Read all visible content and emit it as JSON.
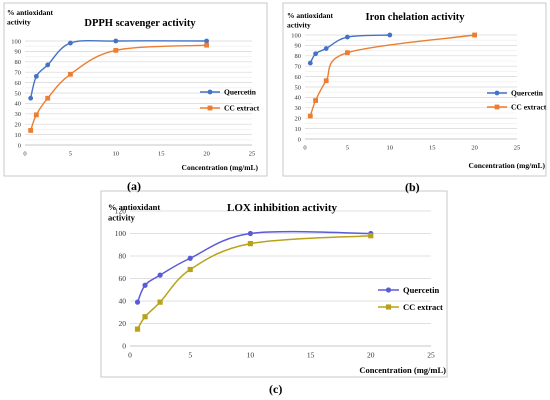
{
  "chart_data": [
    {
      "id": "a",
      "type": "line",
      "title": "DPPH scavenger activity",
      "ylabel": "% antioxidant activity",
      "xlabel": "Concentration (mg/mL)",
      "xlim": [
        0,
        25
      ],
      "ylim": [
        0,
        100
      ],
      "xticks": [
        0,
        5,
        10,
        15,
        20,
        25
      ],
      "yticks": [
        0,
        10,
        20,
        30,
        40,
        50,
        60,
        70,
        80,
        90,
        100
      ],
      "legend_position": "right",
      "series": [
        {
          "name": "Quercetin",
          "color": "#4472C4",
          "marker": "circle",
          "x": [
            0.625,
            1.25,
            2.5,
            5,
            10,
            20
          ],
          "y": [
            45,
            66,
            77,
            98,
            100,
            100
          ]
        },
        {
          "name": "CC extract",
          "color": "#ED7D31",
          "marker": "square",
          "x": [
            0.625,
            1.25,
            2.5,
            5,
            10,
            20
          ],
          "y": [
            14,
            29,
            45,
            68,
            91,
            96
          ]
        }
      ],
      "panel_label": "(a)"
    },
    {
      "id": "b",
      "type": "line",
      "title": "Iron chelation activity",
      "ylabel": "% antioxidant activity",
      "xlabel": "Concentration (mg/mL)",
      "xlim": [
        0,
        25
      ],
      "ylim": [
        0,
        100
      ],
      "xticks": [
        0,
        5,
        10,
        15,
        20,
        25
      ],
      "yticks": [
        0,
        10,
        20,
        30,
        40,
        50,
        60,
        70,
        80,
        90,
        100
      ],
      "legend_position": "right",
      "series": [
        {
          "name": "Quercetin",
          "color": "#4472C4",
          "marker": "circle",
          "x": [
            0.625,
            1.25,
            2.5,
            5,
            10
          ],
          "y": [
            73,
            82,
            87,
            98,
            100
          ]
        },
        {
          "name": "CC extract",
          "color": "#ED7D31",
          "marker": "square",
          "x": [
            0.625,
            1.25,
            2.5,
            5,
            20
          ],
          "y": [
            22,
            37,
            56,
            83,
            100
          ]
        }
      ],
      "panel_label": "(b)"
    },
    {
      "id": "c",
      "type": "line",
      "title": "LOX inhibition  activity",
      "ylabel": "% antioxidant activity",
      "xlabel": "Concentration (mg/mL)",
      "xlim": [
        0,
        25
      ],
      "ylim": [
        0,
        120
      ],
      "xticks": [
        0,
        5,
        10,
        15,
        20,
        25
      ],
      "yticks": [
        0,
        20,
        40,
        60,
        80,
        100,
        120
      ],
      "legend_position": "right",
      "series": [
        {
          "name": "Quercetin",
          "color": "#5B5BD6",
          "marker": "circle",
          "x": [
            0.625,
            1.25,
            2.5,
            5,
            10,
            20
          ],
          "y": [
            39,
            54,
            63,
            78,
            100,
            100
          ]
        },
        {
          "name": "CC extract",
          "color": "#B8A21A",
          "marker": "square",
          "x": [
            0.625,
            1.25,
            2.5,
            5,
            10,
            20
          ],
          "y": [
            15,
            26,
            39,
            68,
            91,
            98
          ]
        }
      ],
      "panel_label": "(c)"
    }
  ]
}
